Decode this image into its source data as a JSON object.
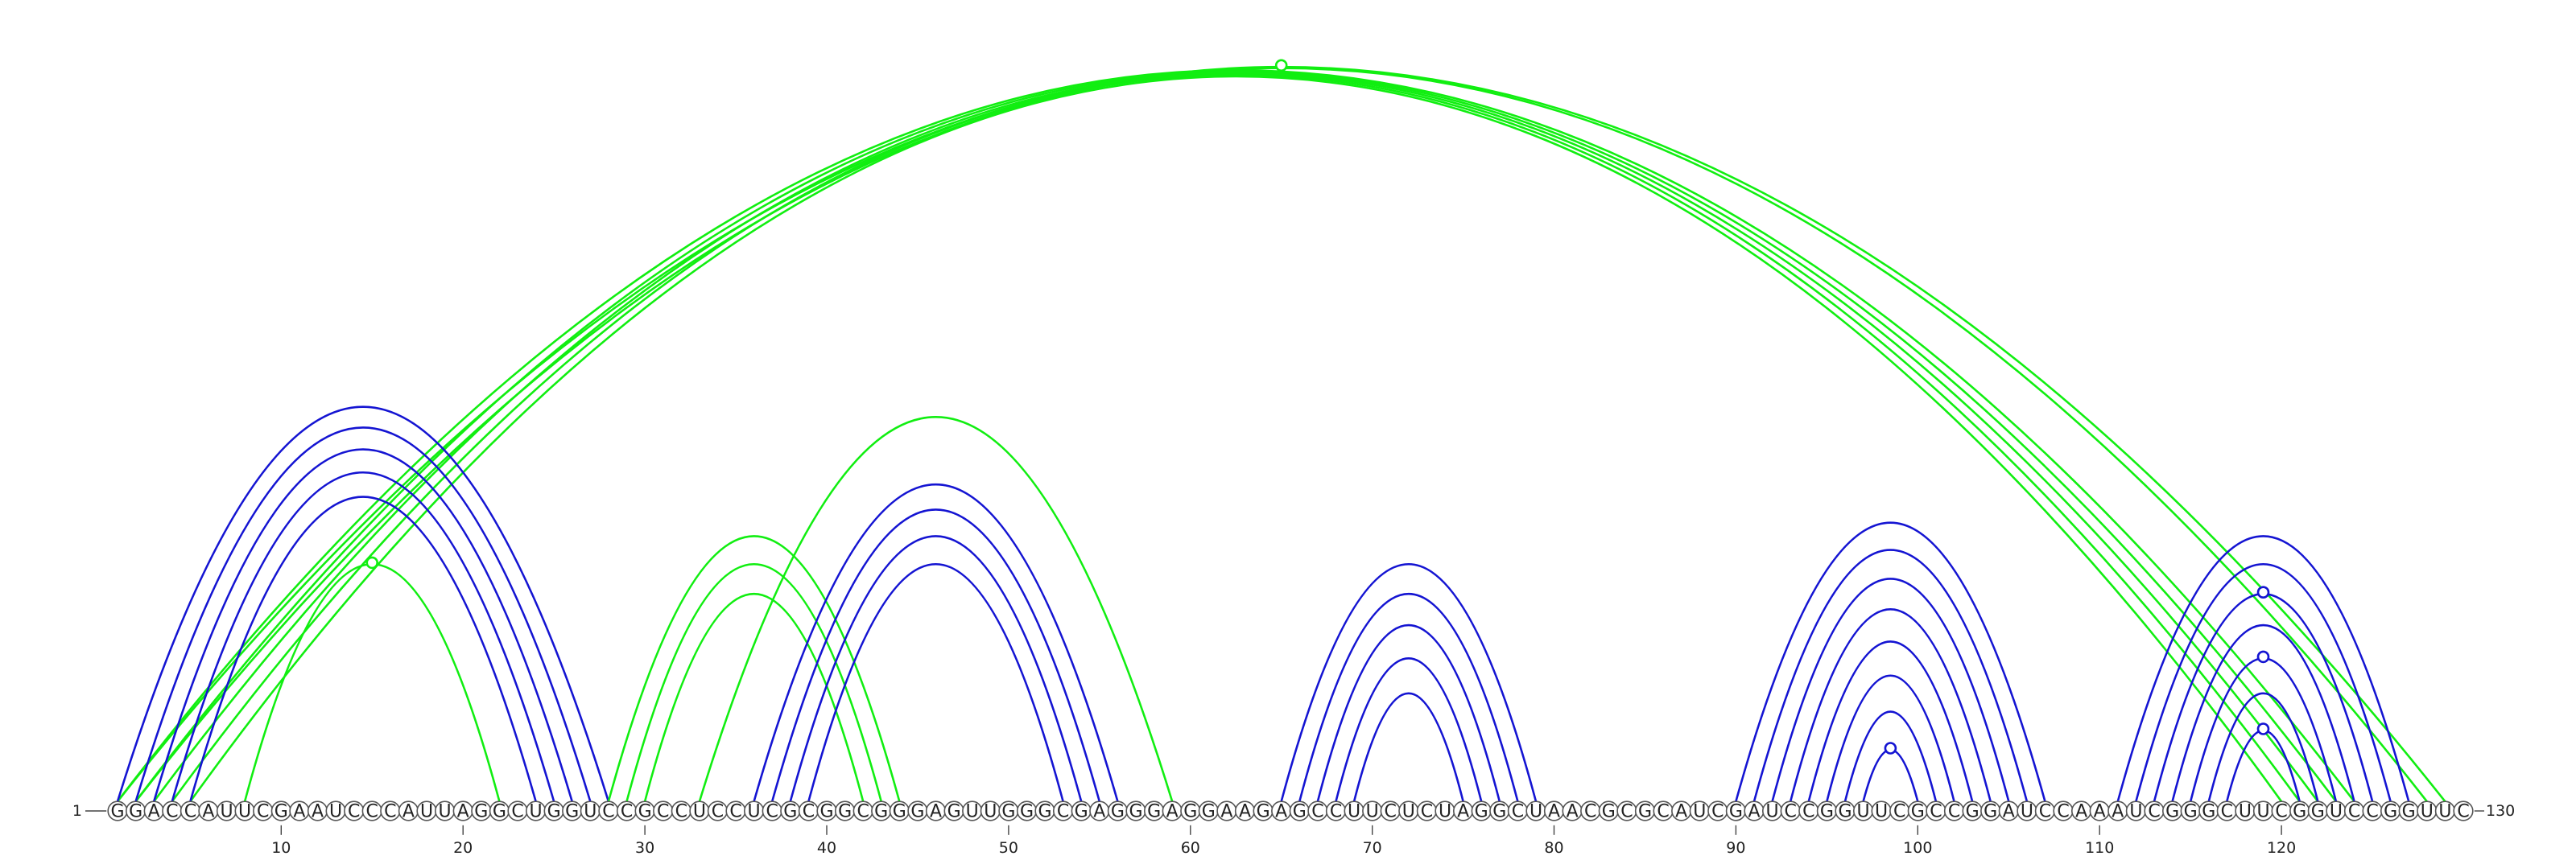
{
  "sequence": "GGACCAUUCGAAUCCCAUUAGGCUGGUCCGCCUCCUCGCGGCGGGAGUUGGGCGAGGGAGGAAGAGCCUUCUCUAGGCUAACGCGCAUCGAUCCGGUUCGCCGGAUCCAAAUCGGGCUUCGGUCCGGUUC",
  "start_label": "1",
  "end_label": "130",
  "ticks": [
    10,
    20,
    30,
    40,
    50,
    60,
    70,
    80,
    90,
    100,
    110,
    120
  ],
  "colors": {
    "blue": "#1414d2",
    "green": "#11ee11"
  },
  "arcs": [
    {
      "i": 1,
      "j": 129,
      "color": "green"
    },
    {
      "i": 2,
      "j": 128,
      "color": "green"
    },
    {
      "i": 1,
      "j": 124,
      "color": "green"
    },
    {
      "i": 2,
      "j": 123,
      "color": "green"
    },
    {
      "i": 3,
      "j": 122,
      "color": "green"
    },
    {
      "i": 4,
      "j": 121,
      "color": "green"
    },
    {
      "i": 5,
      "j": 120,
      "color": "green"
    },
    {
      "i": 1,
      "j": 28,
      "color": "blue"
    },
    {
      "i": 2,
      "j": 27,
      "color": "blue"
    },
    {
      "i": 3,
      "j": 26,
      "color": "blue"
    },
    {
      "i": 4,
      "j": 25,
      "color": "blue"
    },
    {
      "i": 5,
      "j": 24,
      "color": "blue"
    },
    {
      "i": 8,
      "j": 22,
      "color": "green"
    },
    {
      "i": 28,
      "j": 44,
      "color": "green"
    },
    {
      "i": 29,
      "j": 43,
      "color": "green"
    },
    {
      "i": 30,
      "j": 42,
      "color": "green"
    },
    {
      "i": 33,
      "j": 59,
      "color": "green"
    },
    {
      "i": 36,
      "j": 56,
      "color": "blue"
    },
    {
      "i": 37,
      "j": 55,
      "color": "blue"
    },
    {
      "i": 38,
      "j": 54,
      "color": "blue"
    },
    {
      "i": 39,
      "j": 53,
      "color": "blue"
    },
    {
      "i": 65,
      "j": 79,
      "color": "blue"
    },
    {
      "i": 66,
      "j": 78,
      "color": "blue"
    },
    {
      "i": 67,
      "j": 77,
      "color": "blue"
    },
    {
      "i": 68,
      "j": 76,
      "color": "blue"
    },
    {
      "i": 69,
      "j": 75,
      "color": "blue"
    },
    {
      "i": 90,
      "j": 107,
      "color": "blue"
    },
    {
      "i": 91,
      "j": 106,
      "color": "blue"
    },
    {
      "i": 92,
      "j": 105,
      "color": "blue"
    },
    {
      "i": 93,
      "j": 104,
      "color": "blue"
    },
    {
      "i": 94,
      "j": 103,
      "color": "blue"
    },
    {
      "i": 95,
      "j": 102,
      "color": "blue"
    },
    {
      "i": 96,
      "j": 101,
      "color": "blue"
    },
    {
      "i": 97,
      "j": 100,
      "color": "blue"
    },
    {
      "i": 111,
      "j": 127,
      "color": "blue"
    },
    {
      "i": 112,
      "j": 126,
      "color": "blue"
    },
    {
      "i": 113,
      "j": 125,
      "color": "blue"
    },
    {
      "i": 114,
      "j": 124,
      "color": "blue"
    },
    {
      "i": 115,
      "j": 123,
      "color": "blue"
    },
    {
      "i": 116,
      "j": 122,
      "color": "blue"
    },
    {
      "i": 117,
      "j": 121,
      "color": "blue"
    }
  ]
}
